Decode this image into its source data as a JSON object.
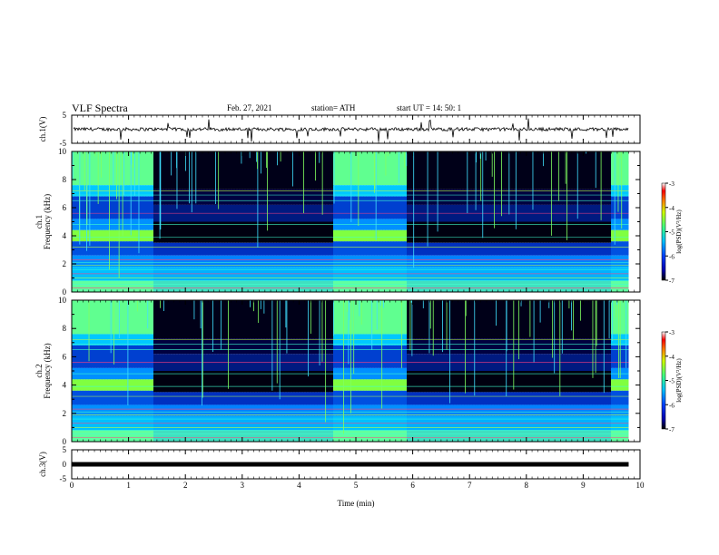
{
  "header": {
    "title": "VLF Spectra",
    "date": "Feb. 27, 2021",
    "station": "station= ATH",
    "start": "start  UT =   14: 50: 1"
  },
  "chart_data": [
    {
      "type": "line",
      "title": "",
      "ylabel": "ch.1(V)",
      "ylim": [
        -5,
        5
      ],
      "yticks": [
        "5",
        "-5"
      ],
      "x": [
        0,
        1,
        2,
        3,
        4,
        5,
        6,
        7,
        8,
        9,
        9.8
      ],
      "series": [
        {
          "values": [
            0,
            0,
            0,
            0,
            0,
            0,
            0,
            0,
            0,
            0,
            0
          ]
        }
      ]
    },
    {
      "type": "heatmap",
      "title": "",
      "ylabel": "ch.1\nFrequency (kHz)",
      "ylim": [
        0,
        10
      ],
      "yticks": [
        "0",
        "2",
        "4",
        "6",
        "8",
        "10"
      ],
      "colorbar": {
        "label": "log(PSD)(V²/Hz)",
        "range": [
          -7,
          -3
        ],
        "ticks": [
          "-3",
          "-4",
          "-5",
          "-6",
          "-7"
        ]
      },
      "quiet_intervals_min": [
        [
          1.4,
          4.6
        ],
        [
          5.85,
          9.45
        ]
      ]
    },
    {
      "type": "heatmap",
      "title": "",
      "ylabel": "ch.2\nFrequency (kHz)",
      "ylim": [
        0,
        10
      ],
      "yticks": [
        "0",
        "2",
        "4",
        "6",
        "8",
        "10"
      ],
      "colorbar": {
        "label": "log(PSD)(V²/Hz)",
        "range": [
          -7,
          -3
        ],
        "ticks": [
          "-3",
          "-4",
          "-5",
          "-6",
          "-7"
        ]
      },
      "quiet_intervals_min": [
        [
          1.4,
          4.6
        ],
        [
          5.85,
          9.45
        ]
      ]
    },
    {
      "type": "line",
      "title": "",
      "ylabel": "ch.3(V)",
      "ylim": [
        -5,
        5
      ],
      "yticks": [
        "5",
        "0",
        "-5"
      ],
      "x": [
        0,
        9.8
      ],
      "series": [
        {
          "values": [
            0,
            0
          ]
        }
      ]
    }
  ],
  "xaxis": {
    "label": "Time (min)",
    "range": [
      0,
      10
    ],
    "ticks": [
      "0",
      "1",
      "2",
      "3",
      "4",
      "5",
      "6",
      "7",
      "8",
      "9",
      "10"
    ]
  },
  "colors": {
    "axis": "#000000",
    "background": "#ffffff"
  }
}
